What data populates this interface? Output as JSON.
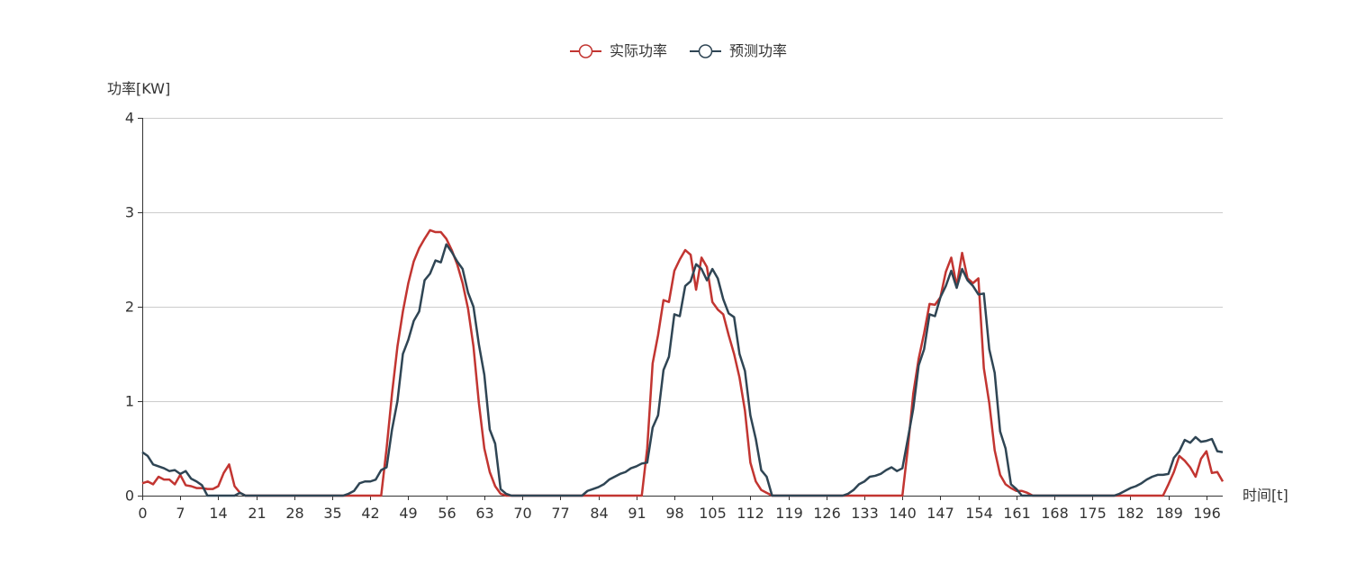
{
  "chart_data": {
    "type": "line",
    "xlabel": "时间[t]",
    "ylabel": "功率[KW]",
    "ylim": [
      0,
      4
    ],
    "xlim": [
      0,
      199
    ],
    "y_ticks": [
      "0",
      "1",
      "2",
      "3",
      "4"
    ],
    "x_ticks": [
      "0",
      "7",
      "14",
      "21",
      "28",
      "35",
      "42",
      "49",
      "56",
      "63",
      "70",
      "77",
      "84",
      "91",
      "98",
      "105",
      "112",
      "119",
      "126",
      "133",
      "140",
      "147",
      "154",
      "161",
      "168",
      "175",
      "182",
      "189",
      "196"
    ],
    "grid": true,
    "legend_position": "top-center",
    "series": [
      {
        "name": "实际功率",
        "color": "#c23531",
        "points": [
          [
            0,
            0.13
          ],
          [
            1,
            0.15
          ],
          [
            2,
            0.12
          ],
          [
            3,
            0.2
          ],
          [
            4,
            0.17
          ],
          [
            5,
            0.17
          ],
          [
            6,
            0.12
          ],
          [
            7,
            0.22
          ],
          [
            8,
            0.11
          ],
          [
            9,
            0.1
          ],
          [
            10,
            0.08
          ],
          [
            11,
            0.08
          ],
          [
            12,
            0.07
          ],
          [
            13,
            0.07
          ],
          [
            14,
            0.1
          ],
          [
            15,
            0.24
          ],
          [
            16,
            0.33
          ],
          [
            17,
            0.1
          ],
          [
            18,
            0.03
          ],
          [
            19,
            0.0
          ],
          [
            44,
            0.0
          ],
          [
            45,
            0.5
          ],
          [
            46,
            1.08
          ],
          [
            47,
            1.58
          ],
          [
            48,
            1.95
          ],
          [
            49,
            2.25
          ],
          [
            50,
            2.48
          ],
          [
            51,
            2.62
          ],
          [
            52,
            2.72
          ],
          [
            53,
            2.81
          ],
          [
            54,
            2.79
          ],
          [
            55,
            2.79
          ],
          [
            56,
            2.72
          ],
          [
            57,
            2.6
          ],
          [
            58,
            2.45
          ],
          [
            59,
            2.25
          ],
          [
            60,
            1.98
          ],
          [
            61,
            1.58
          ],
          [
            62,
            0.98
          ],
          [
            63,
            0.5
          ],
          [
            64,
            0.25
          ],
          [
            65,
            0.1
          ],
          [
            66,
            0.02
          ],
          [
            67,
            0.0
          ],
          [
            92,
            0.0
          ],
          [
            93,
            0.5
          ],
          [
            94,
            1.4
          ],
          [
            95,
            1.7
          ],
          [
            96,
            2.07
          ],
          [
            97,
            2.05
          ],
          [
            98,
            2.38
          ],
          [
            99,
            2.5
          ],
          [
            100,
            2.6
          ],
          [
            101,
            2.55
          ],
          [
            102,
            2.18
          ],
          [
            103,
            2.52
          ],
          [
            104,
            2.42
          ],
          [
            105,
            2.05
          ],
          [
            106,
            1.97
          ],
          [
            107,
            1.92
          ],
          [
            108,
            1.7
          ],
          [
            109,
            1.5
          ],
          [
            110,
            1.25
          ],
          [
            111,
            0.9
          ],
          [
            112,
            0.35
          ],
          [
            113,
            0.15
          ],
          [
            114,
            0.06
          ],
          [
            115,
            0.03
          ],
          [
            116,
            0.0
          ],
          [
            140,
            0.0
          ],
          [
            141,
            0.5
          ],
          [
            142,
            1.08
          ],
          [
            143,
            1.45
          ],
          [
            144,
            1.72
          ],
          [
            145,
            2.03
          ],
          [
            146,
            2.02
          ],
          [
            147,
            2.1
          ],
          [
            148,
            2.37
          ],
          [
            149,
            2.52
          ],
          [
            150,
            2.22
          ],
          [
            151,
            2.57
          ],
          [
            152,
            2.3
          ],
          [
            153,
            2.25
          ],
          [
            154,
            2.3
          ],
          [
            155,
            1.35
          ],
          [
            156,
            0.98
          ],
          [
            157,
            0.48
          ],
          [
            158,
            0.22
          ],
          [
            159,
            0.12
          ],
          [
            160,
            0.08
          ],
          [
            161,
            0.05
          ],
          [
            162,
            0.05
          ],
          [
            163,
            0.03
          ],
          [
            164,
            0.0
          ],
          [
            188,
            0.0
          ],
          [
            189,
            0.12
          ],
          [
            190,
            0.25
          ],
          [
            191,
            0.42
          ],
          [
            192,
            0.37
          ],
          [
            193,
            0.3
          ],
          [
            194,
            0.2
          ],
          [
            195,
            0.39
          ],
          [
            196,
            0.47
          ],
          [
            197,
            0.24
          ],
          [
            198,
            0.25
          ],
          [
            199,
            0.15
          ]
        ]
      },
      {
        "name": "预测功率",
        "color": "#2f4554",
        "points": [
          [
            0,
            0.46
          ],
          [
            1,
            0.42
          ],
          [
            2,
            0.33
          ],
          [
            3,
            0.31
          ],
          [
            4,
            0.29
          ],
          [
            5,
            0.26
          ],
          [
            6,
            0.27
          ],
          [
            7,
            0.23
          ],
          [
            8,
            0.26
          ],
          [
            9,
            0.18
          ],
          [
            10,
            0.15
          ],
          [
            11,
            0.11
          ],
          [
            12,
            0.0
          ],
          [
            17,
            0.0
          ],
          [
            18,
            0.03
          ],
          [
            19,
            0.0
          ],
          [
            37,
            0.0
          ],
          [
            38,
            0.02
          ],
          [
            39,
            0.05
          ],
          [
            40,
            0.13
          ],
          [
            41,
            0.15
          ],
          [
            42,
            0.15
          ],
          [
            43,
            0.17
          ],
          [
            44,
            0.27
          ],
          [
            45,
            0.3
          ],
          [
            46,
            0.7
          ],
          [
            47,
            1.0
          ],
          [
            48,
            1.5
          ],
          [
            49,
            1.65
          ],
          [
            50,
            1.85
          ],
          [
            51,
            1.95
          ],
          [
            52,
            2.28
          ],
          [
            53,
            2.35
          ],
          [
            54,
            2.49
          ],
          [
            55,
            2.47
          ],
          [
            56,
            2.66
          ],
          [
            57,
            2.58
          ],
          [
            58,
            2.48
          ],
          [
            59,
            2.4
          ],
          [
            60,
            2.15
          ],
          [
            61,
            2.0
          ],
          [
            62,
            1.6
          ],
          [
            63,
            1.28
          ],
          [
            64,
            0.7
          ],
          [
            65,
            0.55
          ],
          [
            66,
            0.07
          ],
          [
            67,
            0.02
          ],
          [
            68,
            0.0
          ],
          [
            81,
            0.0
          ],
          [
            82,
            0.05
          ],
          [
            83,
            0.07
          ],
          [
            84,
            0.09
          ],
          [
            85,
            0.12
          ],
          [
            86,
            0.17
          ],
          [
            87,
            0.2
          ],
          [
            88,
            0.23
          ],
          [
            89,
            0.25
          ],
          [
            90,
            0.29
          ],
          [
            91,
            0.31
          ],
          [
            92,
            0.34
          ],
          [
            93,
            0.35
          ],
          [
            94,
            0.72
          ],
          [
            95,
            0.85
          ],
          [
            96,
            1.33
          ],
          [
            97,
            1.47
          ],
          [
            98,
            1.92
          ],
          [
            99,
            1.9
          ],
          [
            100,
            2.22
          ],
          [
            101,
            2.27
          ],
          [
            102,
            2.45
          ],
          [
            103,
            2.4
          ],
          [
            104,
            2.28
          ],
          [
            105,
            2.4
          ],
          [
            106,
            2.3
          ],
          [
            107,
            2.08
          ],
          [
            108,
            1.93
          ],
          [
            109,
            1.89
          ],
          [
            110,
            1.5
          ],
          [
            111,
            1.32
          ],
          [
            112,
            0.85
          ],
          [
            113,
            0.6
          ],
          [
            114,
            0.27
          ],
          [
            115,
            0.2
          ],
          [
            116,
            0.0
          ],
          [
            129,
            0.0
          ],
          [
            130,
            0.02
          ],
          [
            131,
            0.06
          ],
          [
            132,
            0.12
          ],
          [
            133,
            0.15
          ],
          [
            134,
            0.2
          ],
          [
            135,
            0.21
          ],
          [
            136,
            0.23
          ],
          [
            137,
            0.27
          ],
          [
            138,
            0.3
          ],
          [
            139,
            0.26
          ],
          [
            140,
            0.29
          ],
          [
            141,
            0.6
          ],
          [
            142,
            0.92
          ],
          [
            143,
            1.38
          ],
          [
            144,
            1.55
          ],
          [
            145,
            1.92
          ],
          [
            146,
            1.9
          ],
          [
            147,
            2.1
          ],
          [
            148,
            2.22
          ],
          [
            149,
            2.38
          ],
          [
            150,
            2.2
          ],
          [
            151,
            2.4
          ],
          [
            152,
            2.28
          ],
          [
            153,
            2.22
          ],
          [
            154,
            2.13
          ],
          [
            155,
            2.14
          ],
          [
            156,
            1.55
          ],
          [
            157,
            1.3
          ],
          [
            158,
            0.68
          ],
          [
            159,
            0.5
          ],
          [
            160,
            0.12
          ],
          [
            161,
            0.07
          ],
          [
            162,
            0.0
          ],
          [
            179,
            0.0
          ],
          [
            180,
            0.02
          ],
          [
            181,
            0.05
          ],
          [
            182,
            0.08
          ],
          [
            183,
            0.1
          ],
          [
            184,
            0.13
          ],
          [
            185,
            0.17
          ],
          [
            186,
            0.2
          ],
          [
            187,
            0.22
          ],
          [
            188,
            0.22
          ],
          [
            189,
            0.23
          ],
          [
            190,
            0.4
          ],
          [
            191,
            0.47
          ],
          [
            192,
            0.59
          ],
          [
            193,
            0.56
          ],
          [
            194,
            0.62
          ],
          [
            195,
            0.57
          ],
          [
            196,
            0.58
          ],
          [
            197,
            0.6
          ],
          [
            198,
            0.47
          ],
          [
            199,
            0.46
          ]
        ]
      }
    ]
  }
}
